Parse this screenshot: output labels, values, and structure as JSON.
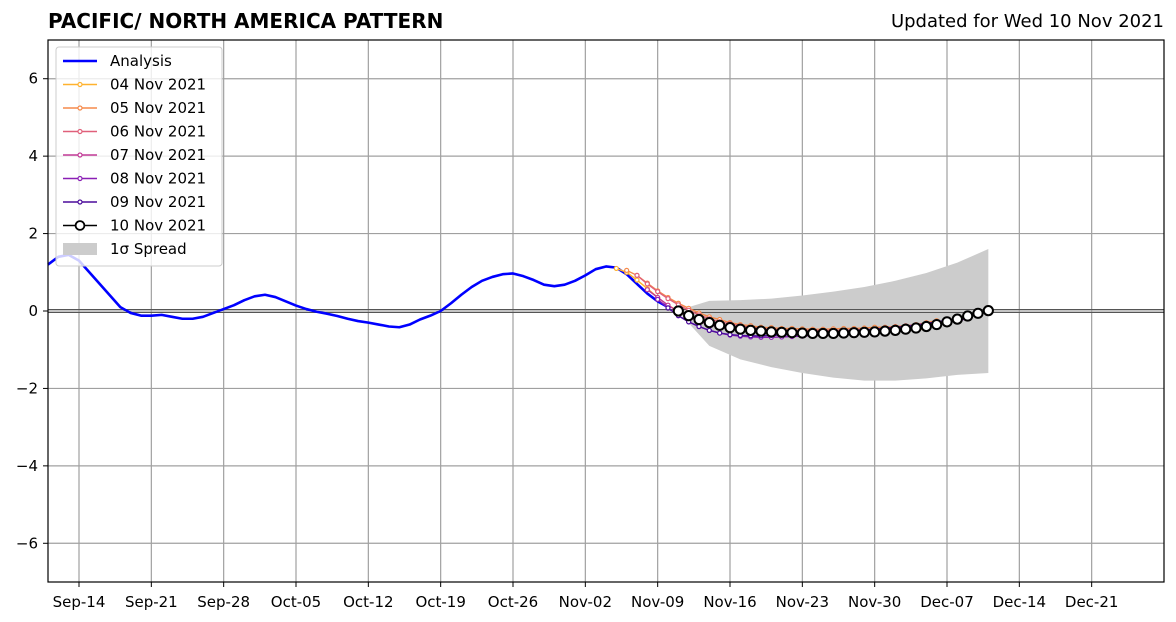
{
  "header": {
    "title": "PACIFIC/ NORTH AMERICA PATTERN",
    "updated": "Updated for Wed 10 Nov 2021"
  },
  "chart_data": {
    "type": "line",
    "title": "PACIFIC/ NORTH AMERICA PATTERN",
    "ylim": [
      -7,
      7
    ],
    "yticks": [
      -6,
      -4,
      -2,
      0,
      2,
      4,
      6
    ],
    "ytick_labels": [
      "−6",
      "−4",
      "−2",
      "0",
      "2",
      "4",
      "6"
    ],
    "xlim": [
      "2021-09-11",
      "2021-12-28"
    ],
    "xticks": [
      "2021-09-14",
      "2021-09-21",
      "2021-09-28",
      "2021-10-05",
      "2021-10-12",
      "2021-10-19",
      "2021-10-26",
      "2021-11-02",
      "2021-11-09",
      "2021-11-16",
      "2021-11-23",
      "2021-11-30",
      "2021-12-07",
      "2021-12-14",
      "2021-12-21"
    ],
    "xtick_labels": [
      "Sep-14",
      "Sep-21",
      "Sep-28",
      "Oct-05",
      "Oct-12",
      "Oct-19",
      "Oct-26",
      "Nov-02",
      "Nov-09",
      "Nov-16",
      "Nov-23",
      "Nov-30",
      "Dec-07",
      "Dec-14",
      "Dec-21"
    ],
    "grid": true,
    "legend_position": "top-left",
    "analysis": {
      "name": "Analysis",
      "color": "#0000ff",
      "x": [
        "2021-09-11",
        "2021-09-12",
        "2021-09-13",
        "2021-09-14",
        "2021-09-15",
        "2021-09-16",
        "2021-09-17",
        "2021-09-18",
        "2021-09-19",
        "2021-09-20",
        "2021-09-21",
        "2021-09-22",
        "2021-09-23",
        "2021-09-24",
        "2021-09-25",
        "2021-09-26",
        "2021-09-27",
        "2021-09-28",
        "2021-09-29",
        "2021-09-30",
        "2021-10-01",
        "2021-10-02",
        "2021-10-03",
        "2021-10-04",
        "2021-10-05",
        "2021-10-06",
        "2021-10-07",
        "2021-10-08",
        "2021-10-09",
        "2021-10-10",
        "2021-10-11",
        "2021-10-12",
        "2021-10-13",
        "2021-10-14",
        "2021-10-15",
        "2021-10-16",
        "2021-10-17",
        "2021-10-18",
        "2021-10-19",
        "2021-10-20",
        "2021-10-21",
        "2021-10-22",
        "2021-10-23",
        "2021-10-24",
        "2021-10-25",
        "2021-10-26",
        "2021-10-27",
        "2021-10-28",
        "2021-10-29",
        "2021-10-30",
        "2021-10-31",
        "2021-11-01",
        "2021-11-02",
        "2021-11-03",
        "2021-11-04",
        "2021-11-05",
        "2021-11-06",
        "2021-11-07",
        "2021-11-08",
        "2021-11-09",
        "2021-11-10"
      ],
      "values": [
        1.2,
        1.4,
        1.45,
        1.3,
        1.0,
        0.7,
        0.4,
        0.1,
        -0.05,
        -0.12,
        -0.12,
        -0.1,
        -0.15,
        -0.2,
        -0.2,
        -0.15,
        -0.05,
        0.05,
        0.15,
        0.28,
        0.38,
        0.42,
        0.36,
        0.25,
        0.14,
        0.05,
        -0.02,
        -0.07,
        -0.13,
        -0.2,
        -0.26,
        -0.3,
        -0.35,
        -0.4,
        -0.42,
        -0.35,
        -0.22,
        -0.12,
        0.0,
        0.2,
        0.42,
        0.62,
        0.78,
        0.88,
        0.95,
        0.97,
        0.9,
        0.8,
        0.68,
        0.64,
        0.68,
        0.78,
        0.92,
        1.08,
        1.15,
        1.12,
        0.95,
        0.7,
        0.45,
        0.25,
        0.1
      ]
    },
    "forecasts": [
      {
        "name": "04 Nov 2021",
        "color": "#ffb22e",
        "start": "2021-11-05",
        "values": [
          1.1,
          1.0,
          0.8,
          0.58,
          0.35,
          0.15,
          0.0,
          -0.1,
          -0.2,
          -0.3,
          -0.38,
          -0.42,
          -0.45,
          -0.47,
          -0.48,
          -0.48,
          -0.5,
          -0.5,
          -0.52,
          -0.52,
          -0.52,
          -0.53,
          -0.53,
          -0.52,
          -0.52,
          -0.52,
          -0.52,
          -0.5,
          -0.5,
          -0.48,
          -0.47
        ]
      },
      {
        "name": "05 Nov 2021",
        "color": "#f58a4b",
        "start": "2021-11-06",
        "values": [
          1.05,
          0.92,
          0.72,
          0.52,
          0.35,
          0.2,
          0.07,
          -0.05,
          -0.15,
          -0.22,
          -0.3,
          -0.35,
          -0.38,
          -0.42,
          -0.43,
          -0.45,
          -0.45,
          -0.46,
          -0.47,
          -0.47,
          -0.46,
          -0.45,
          -0.45,
          -0.44,
          -0.42,
          -0.42,
          -0.4,
          -0.38,
          -0.35,
          -0.3,
          -0.25
        ]
      },
      {
        "name": "06 Nov 2021",
        "color": "#e0607a",
        "start": "2021-11-07",
        "values": [
          0.92,
          0.7,
          0.5,
          0.32,
          0.16,
          0.02,
          -0.1,
          -0.2,
          -0.28,
          -0.33,
          -0.38,
          -0.42,
          -0.45,
          -0.47,
          -0.48,
          -0.5,
          -0.5,
          -0.5,
          -0.5,
          -0.5,
          -0.5,
          -0.48,
          -0.48,
          -0.48,
          -0.45,
          -0.43,
          -0.4,
          -0.38,
          -0.35,
          -0.3,
          -0.26
        ]
      },
      {
        "name": "07 Nov 2021",
        "color": "#c23a96",
        "start": "2021-11-08",
        "values": [
          0.55,
          0.35,
          0.15,
          -0.02,
          -0.15,
          -0.27,
          -0.35,
          -0.42,
          -0.47,
          -0.5,
          -0.53,
          -0.55,
          -0.57,
          -0.57,
          -0.58,
          -0.58,
          -0.57,
          -0.57,
          -0.56,
          -0.55,
          -0.55,
          -0.53,
          -0.52,
          -0.5,
          -0.48,
          -0.45,
          -0.42,
          -0.38,
          -0.33,
          -0.28,
          -0.22
        ]
      },
      {
        "name": "08 Nov 2021",
        "color": "#8a1fb5",
        "start": "2021-11-09",
        "values": [
          0.3,
          0.08,
          -0.12,
          -0.28,
          -0.4,
          -0.5,
          -0.57,
          -0.62,
          -0.65,
          -0.67,
          -0.68,
          -0.68,
          -0.67,
          -0.66,
          -0.65,
          -0.63,
          -0.62,
          -0.6,
          -0.58,
          -0.56,
          -0.54,
          -0.52,
          -0.5,
          -0.48,
          -0.45,
          -0.42,
          -0.38,
          -0.34,
          -0.3,
          -0.25,
          -0.2
        ]
      },
      {
        "name": "09 Nov 2021",
        "color": "#4b0c9c",
        "start": "2021-11-10",
        "values": [
          0.08,
          -0.12,
          -0.28,
          -0.4,
          -0.5,
          -0.57,
          -0.61,
          -0.63,
          -0.64,
          -0.64,
          -0.63,
          -0.62,
          -0.61,
          -0.6,
          -0.58,
          -0.57,
          -0.55,
          -0.53,
          -0.51,
          -0.49,
          -0.47,
          -0.44,
          -0.42,
          -0.39,
          -0.36,
          -0.32,
          -0.28,
          -0.24,
          -0.19,
          -0.14,
          -0.09
        ]
      },
      {
        "name": "10 Nov 2021",
        "color": "#000000",
        "start": "2021-11-11",
        "values": [
          0.0,
          -0.12,
          -0.22,
          -0.3,
          -0.37,
          -0.43,
          -0.47,
          -0.5,
          -0.52,
          -0.54,
          -0.55,
          -0.56,
          -0.57,
          -0.58,
          -0.58,
          -0.58,
          -0.57,
          -0.56,
          -0.55,
          -0.54,
          -0.52,
          -0.5,
          -0.47,
          -0.44,
          -0.4,
          -0.35,
          -0.28,
          -0.21,
          -0.13,
          -0.06,
          0.01
        ]
      }
    ],
    "spread": {
      "name": "1σ Spread",
      "color": "#cccccc",
      "x": [
        "2021-11-11",
        "2021-11-14",
        "2021-11-17",
        "2021-11-20",
        "2021-11-23",
        "2021-11-26",
        "2021-11-29",
        "2021-12-02",
        "2021-12-05",
        "2021-12-08",
        "2021-12-11"
      ],
      "upper": [
        0.02,
        0.26,
        0.28,
        0.32,
        0.4,
        0.5,
        0.62,
        0.78,
        0.98,
        1.25,
        1.6
      ],
      "lower": [
        -0.02,
        -0.9,
        -1.25,
        -1.45,
        -1.6,
        -1.72,
        -1.8,
        -1.8,
        -1.74,
        -1.65,
        -1.6
      ]
    }
  }
}
